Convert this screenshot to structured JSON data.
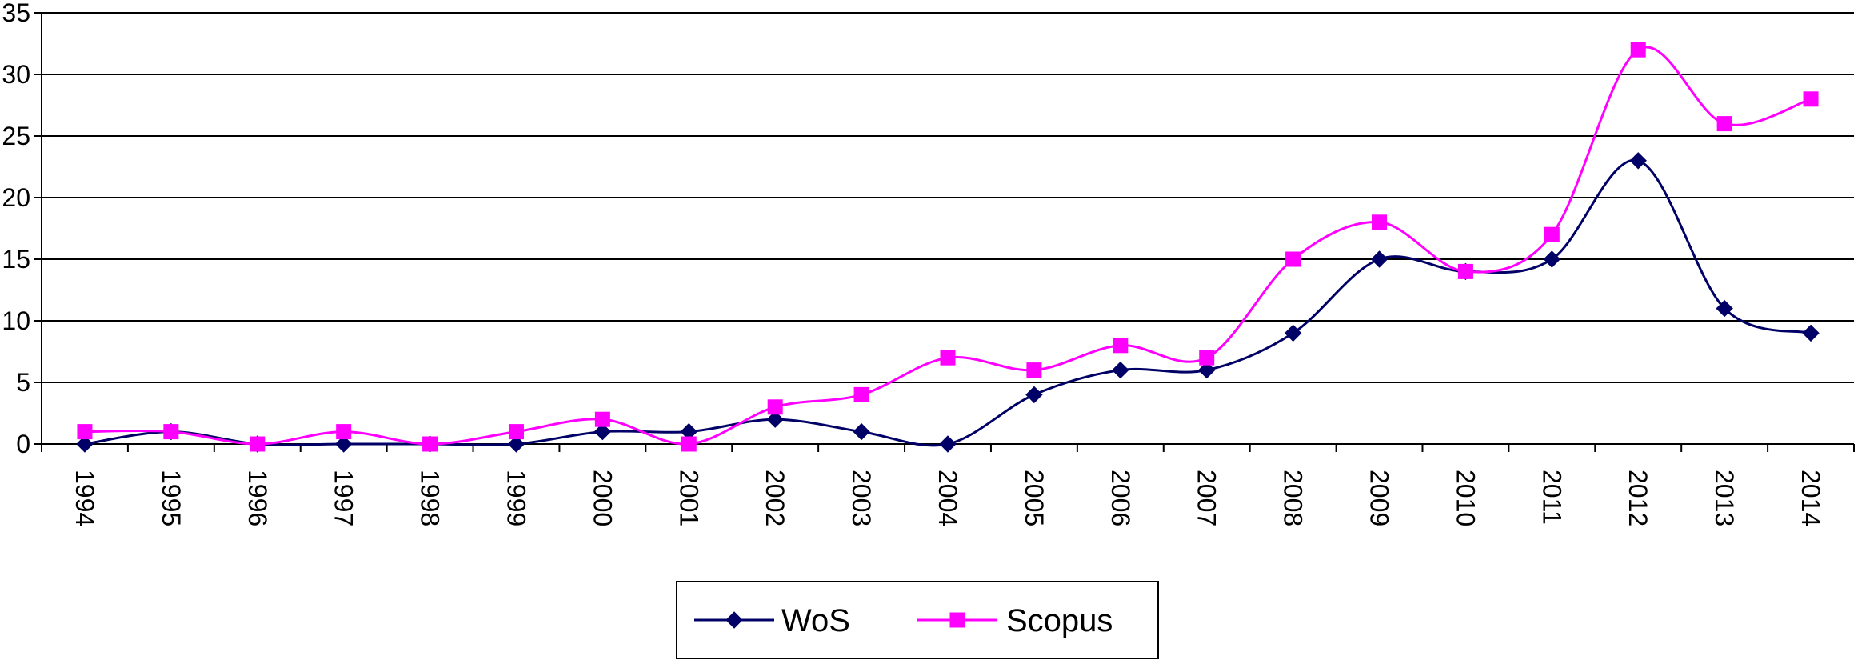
{
  "chart_data": {
    "type": "line",
    "title": "",
    "xlabel": "",
    "ylabel": "",
    "categories": [
      "1994",
      "1995",
      "1996",
      "1997",
      "1998",
      "1999",
      "2000",
      "2001",
      "2002",
      "2003",
      "2004",
      "2005",
      "2006",
      "2007",
      "2008",
      "2009",
      "2010",
      "2011",
      "2012",
      "2013",
      "2014"
    ],
    "ylim": [
      0,
      35
    ],
    "yticks": [
      "0",
      "5",
      "10",
      "15",
      "20",
      "25",
      "30",
      "35"
    ],
    "grid": "horizontal",
    "legend_position": "bottom",
    "series": [
      {
        "name": "WoS",
        "color": "#000066",
        "marker": "diamond",
        "values": [
          0,
          1,
          0,
          0,
          0,
          0,
          1,
          1,
          2,
          1,
          0,
          4,
          6,
          6,
          9,
          15,
          14,
          15,
          23,
          11,
          9
        ]
      },
      {
        "name": "Scopus",
        "color": "#ff00ff",
        "marker": "square",
        "values": [
          1,
          1,
          0,
          1,
          0,
          1,
          2,
          0,
          3,
          4,
          7,
          6,
          8,
          7,
          15,
          18,
          14,
          17,
          32,
          26,
          28
        ]
      }
    ]
  }
}
